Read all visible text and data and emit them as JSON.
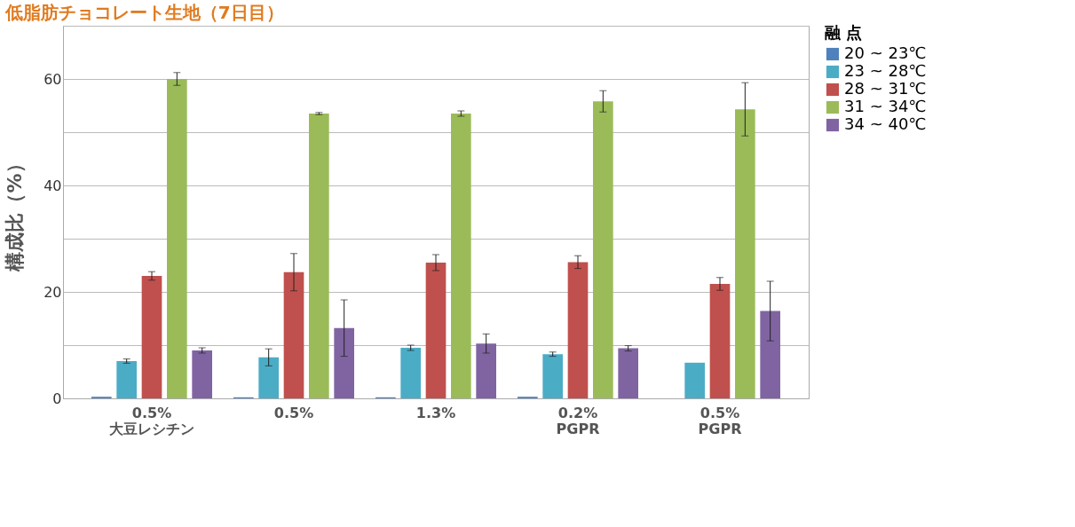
{
  "chart_data": {
    "type": "bar",
    "title": "低脂肪チョコレート生地（7日目）",
    "ylabel": "構成比（%）",
    "legend_title": "融 点",
    "categories": [
      "0.5%\n大豆レシチン",
      "0.5%",
      "1.3%",
      "0.2%\nPGPR",
      "0.5%\nPGPR"
    ],
    "series": [
      {
        "name": "20 ~ 23℃",
        "color": "#4f81bd",
        "values": [
          0.3,
          0.2,
          0.2,
          0.3,
          0
        ],
        "errors": [
          null,
          null,
          null,
          null,
          null
        ]
      },
      {
        "name": "23 ~ 28℃",
        "color": "#4bacc6",
        "values": [
          7.0,
          7.7,
          9.5,
          8.3,
          6.7
        ],
        "errors": [
          0.4,
          1.6,
          0.5,
          0.4,
          null
        ]
      },
      {
        "name": "28 ~ 31℃",
        "color": "#c0504d",
        "values": [
          23.0,
          23.7,
          25.5,
          25.6,
          21.5
        ],
        "errors": [
          0.8,
          3.5,
          1.5,
          1.2,
          1.2
        ]
      },
      {
        "name": "31 ~ 34℃",
        "color": "#9bbb59",
        "values": [
          60.0,
          53.5,
          53.5,
          55.8,
          54.3
        ],
        "errors": [
          1.2,
          0.2,
          0.5,
          2.0,
          5.0
        ]
      },
      {
        "name": "34 ~ 40℃",
        "color": "#8064a2",
        "values": [
          9.0,
          13.2,
          10.3,
          9.4,
          16.4
        ],
        "errors": [
          0.5,
          5.3,
          1.8,
          0.5,
          5.6
        ]
      }
    ],
    "ylim": [
      0,
      70
    ],
    "yticks": [
      0,
      {
        "value": 10,
        "label": null
      },
      20,
      {
        "value": 30,
        "label": null
      },
      40,
      {
        "value": 50,
        "label": null
      },
      60,
      {
        "value": 70,
        "label": null
      }
    ],
    "grid": "y",
    "legend": "right"
  }
}
